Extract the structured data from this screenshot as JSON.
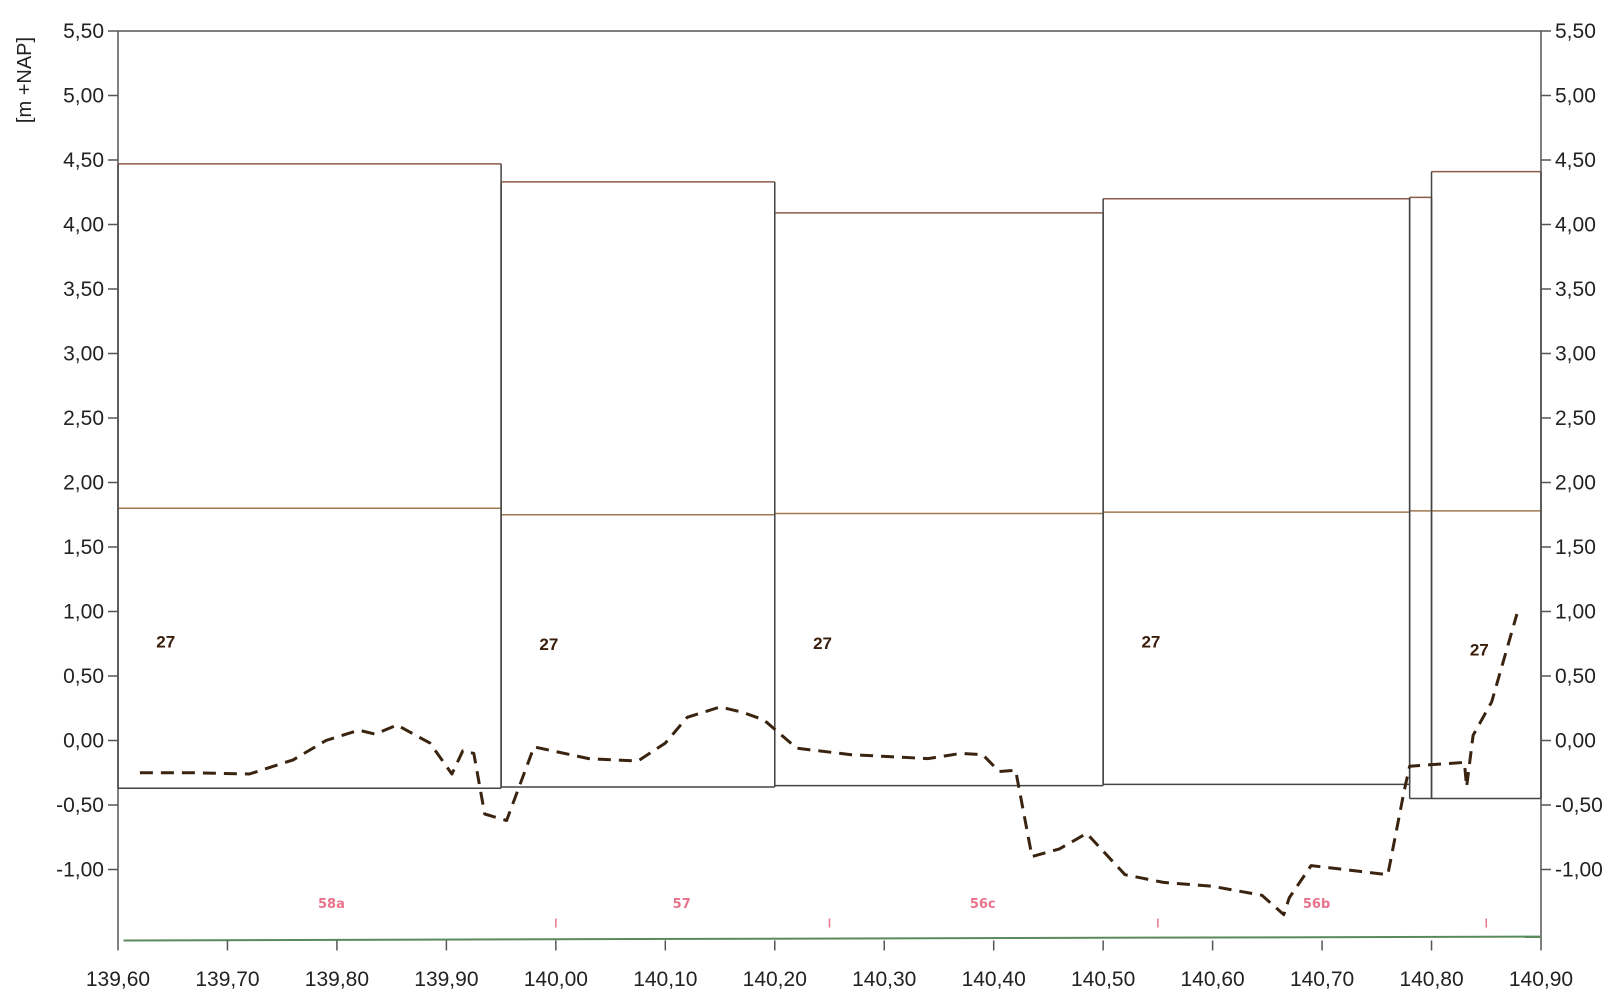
{
  "colors": {
    "background": "#ffffff",
    "frame": "#555555",
    "crest_line": "#8a5a4a",
    "mid_line": "#a07850",
    "toe_line": "#444444",
    "bottom_line": "#5a8a5a",
    "profile_line": "#3a2410",
    "section_label": "#3a1e0c",
    "marker_label": "#e8738a"
  },
  "chart_data": {
    "type": "line",
    "title": "",
    "ylabel": "[m +NAP]",
    "xlabel": "",
    "xlim": [
      139.6,
      140.9
    ],
    "ylim": [
      -1.5,
      5.5
    ],
    "grid": false,
    "x_ticks": [
      "139,60",
      "139,70",
      "139,80",
      "139,90",
      "140,00",
      "140,10",
      "140,20",
      "140,30",
      "140,40",
      "140,50",
      "140,60",
      "140,70",
      "140,80",
      "140,90"
    ],
    "x_tick_values": [
      139.6,
      139.7,
      139.8,
      139.9,
      140.0,
      140.1,
      140.2,
      140.3,
      140.4,
      140.5,
      140.6,
      140.7,
      140.8,
      140.9
    ],
    "y_ticks_left": [
      "5,50",
      "5,00",
      "4,50",
      "4,00",
      "3,50",
      "3,00",
      "2,50",
      "2,00",
      "1,50",
      "1,00",
      "0,50",
      "0,00",
      "-0,50",
      "-1,00"
    ],
    "y_ticks_right": [
      "5,50",
      "5,00",
      "4,50",
      "4,00",
      "3,50",
      "3,00",
      "2,50",
      "2,00",
      "1,50",
      "1,00",
      "0,50",
      "0,00",
      "-0,50",
      "-1,00"
    ],
    "y_tick_values": [
      5.5,
      5.0,
      4.5,
      4.0,
      3.5,
      3.0,
      2.5,
      2.0,
      1.5,
      1.0,
      0.5,
      0.0,
      -0.5,
      -1.0
    ],
    "sections": [
      {
        "start": 139.6,
        "end": 139.95,
        "crest": 4.47,
        "mid": 1.8,
        "toe": -0.37,
        "label": "27",
        "label_x": 139.635,
        "label_y": 0.72
      },
      {
        "start": 139.95,
        "end": 140.2,
        "crest": 4.33,
        "mid": 1.75,
        "toe": -0.36,
        "label": "27",
        "label_x": 139.985,
        "label_y": 0.7
      },
      {
        "start": 140.2,
        "end": 140.5,
        "crest": 4.09,
        "mid": 1.76,
        "toe": -0.35,
        "label": "27",
        "label_x": 140.235,
        "label_y": 0.71
      },
      {
        "start": 140.5,
        "end": 140.78,
        "crest": 4.2,
        "mid": 1.77,
        "toe": -0.34,
        "label": "27",
        "label_x": 140.535,
        "label_y": 0.72
      },
      {
        "start": 140.78,
        "end": 140.8,
        "crest": 4.21,
        "mid": 1.78,
        "toe": -0.45,
        "label": "",
        "label_x": 140.79,
        "label_y": 0.7
      },
      {
        "start": 140.8,
        "end": 140.9,
        "crest": 4.41,
        "mid": 1.78,
        "toe": -0.45,
        "label": "27",
        "label_x": 140.835,
        "label_y": 0.66
      }
    ],
    "bottom_line": {
      "x": [
        139.605,
        140.9
      ],
      "y": [
        -1.55,
        -1.52
      ]
    },
    "series": [
      {
        "name": "",
        "style": "dashed",
        "x": [
          139.62,
          139.67,
          139.72,
          139.76,
          139.79,
          139.82,
          139.835,
          139.855,
          139.885,
          139.905,
          139.915,
          139.925,
          139.935,
          139.955,
          139.98,
          140.03,
          140.075,
          140.1,
          140.12,
          140.15,
          140.17,
          140.19,
          140.22,
          140.27,
          140.34,
          140.37,
          140.39,
          140.405,
          140.42,
          140.435,
          140.46,
          140.485,
          140.52,
          140.555,
          140.6,
          140.645,
          140.665,
          140.67,
          140.69,
          140.72,
          140.76,
          140.775,
          140.78,
          140.795,
          140.83,
          140.832,
          140.838,
          140.855,
          140.878
        ],
        "y": [
          -0.25,
          -0.25,
          -0.26,
          -0.15,
          0.0,
          0.08,
          0.05,
          0.12,
          -0.02,
          -0.26,
          -0.08,
          -0.1,
          -0.57,
          -0.62,
          -0.05,
          -0.14,
          -0.16,
          -0.02,
          0.18,
          0.26,
          0.22,
          0.16,
          -0.06,
          -0.11,
          -0.14,
          -0.1,
          -0.11,
          -0.24,
          -0.23,
          -0.9,
          -0.84,
          -0.72,
          -1.04,
          -1.1,
          -1.13,
          -1.2,
          -1.35,
          -1.22,
          -0.97,
          -1.0,
          -1.04,
          -0.39,
          -0.2,
          -0.19,
          -0.17,
          -0.36,
          0.04,
          0.3,
          0.98
        ]
      }
    ],
    "markers": [
      {
        "label": "58a",
        "x": 139.795
      },
      {
        "label": "57",
        "x": 140.115
      },
      {
        "label": "56c",
        "x": 140.39
      },
      {
        "label": "56b",
        "x": 140.695
      }
    ],
    "small_ticks": [
      140.0,
      140.25,
      140.55,
      140.85
    ]
  }
}
